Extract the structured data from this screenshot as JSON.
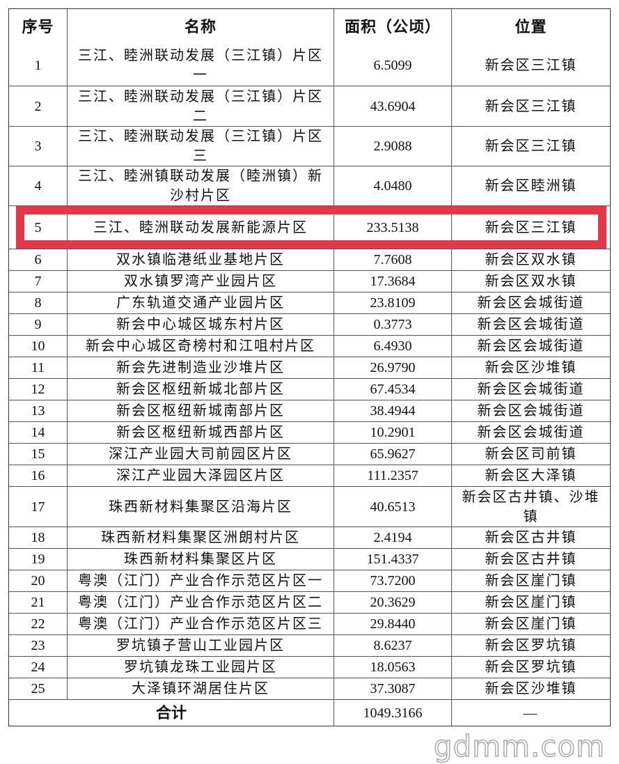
{
  "table": {
    "headers": [
      "序号",
      "名称",
      "面积（公顷）",
      "位置"
    ],
    "rows": [
      {
        "no": "1",
        "name": "三江、睦洲联动发展（三江镇）片区一",
        "area": "6.5099",
        "location": "新会区三江镇"
      },
      {
        "no": "2",
        "name": "三江、睦洲联动发展（三江镇）片区二",
        "area": "43.6904",
        "location": "新会区三江镇"
      },
      {
        "no": "3",
        "name": "三江、睦洲联动发展（三江镇）片区三",
        "area": "2.9088",
        "location": "新会区三江镇"
      },
      {
        "no": "4",
        "name": "三江、睦洲镇联动发展（睦洲镇）新沙村片区",
        "area": "4.0480",
        "location": "新会区睦洲镇"
      },
      {
        "no": "5",
        "name": "三江、睦洲联动发展新能源片区",
        "area": "233.5138",
        "location": "新会区三江镇"
      },
      {
        "no": "6",
        "name": "双水镇临港纸业基地片区",
        "area": "7.7608",
        "location": "新会区双水镇"
      },
      {
        "no": "7",
        "name": "双水镇罗湾产业园片区",
        "area": "17.3684",
        "location": "新会区双水镇"
      },
      {
        "no": "8",
        "name": "广东轨道交通产业园片区",
        "area": "23.8109",
        "location": "新会区会城街道"
      },
      {
        "no": "9",
        "name": "新会中心城区城东村片区",
        "area": "0.3773",
        "location": "新会区会城街道"
      },
      {
        "no": "10",
        "name": "新会中心城区奇榜村和江咀村片区",
        "area": "6.4930",
        "location": "新会区会城街道"
      },
      {
        "no": "11",
        "name": "新会先进制造业沙堆片区",
        "area": "26.9790",
        "location": "新会区沙堆镇"
      },
      {
        "no": "12",
        "name": "新会区枢纽新城北部片区",
        "area": "67.4534",
        "location": "新会区会城街道"
      },
      {
        "no": "13",
        "name": "新会区枢纽新城南部片区",
        "area": "38.4944",
        "location": "新会区会城街道"
      },
      {
        "no": "14",
        "name": "新会区枢纽新城西部片区",
        "area": "10.2901",
        "location": "新会区会城街道"
      },
      {
        "no": "15",
        "name": "深江产业园大司前园区片区",
        "area": "65.9627",
        "location": "新会区司前镇"
      },
      {
        "no": "16",
        "name": "深江产业园大泽园区片区",
        "area": "111.2357",
        "location": "新会区大泽镇"
      },
      {
        "no": "17",
        "name": "珠西新材料集聚区沿海片区",
        "area": "40.6513",
        "location": "新会区古井镇、沙堆镇"
      },
      {
        "no": "18",
        "name": "珠西新材料集聚区洲朗村片区",
        "area": "2.4194",
        "location": "新会区古井镇"
      },
      {
        "no": "19",
        "name": "珠西新材料集聚区片区",
        "area": "151.4337",
        "location": "新会区古井镇"
      },
      {
        "no": "20",
        "name": "粤澳（江门）产业合作示范区片区一",
        "area": "73.7200",
        "location": "新会区崖门镇"
      },
      {
        "no": "21",
        "name": "粤澳（江门）产业合作示范区片区二",
        "area": "20.3629",
        "location": "新会区崖门镇"
      },
      {
        "no": "22",
        "name": "粤澳（江门）产业合作示范区片区三",
        "area": "29.8440",
        "location": "新会区崖门镇"
      },
      {
        "no": "23",
        "name": "罗坑镇子营山工业园片区",
        "area": "8.6237",
        "location": "新会区罗坑镇"
      },
      {
        "no": "24",
        "name": "罗坑镇龙珠工业园片区",
        "area": "18.0563",
        "location": "新会区罗坑镇"
      },
      {
        "no": "25",
        "name": "大泽镇环湖居住片区",
        "area": "37.3087",
        "location": "新会区沙堆镇"
      }
    ],
    "total": {
      "label": "合计",
      "area": "1049.3166",
      "location": "—"
    }
  },
  "highlight": {
    "color": "#e3384a",
    "row_index": 4
  },
  "watermark": "gdmm.com"
}
